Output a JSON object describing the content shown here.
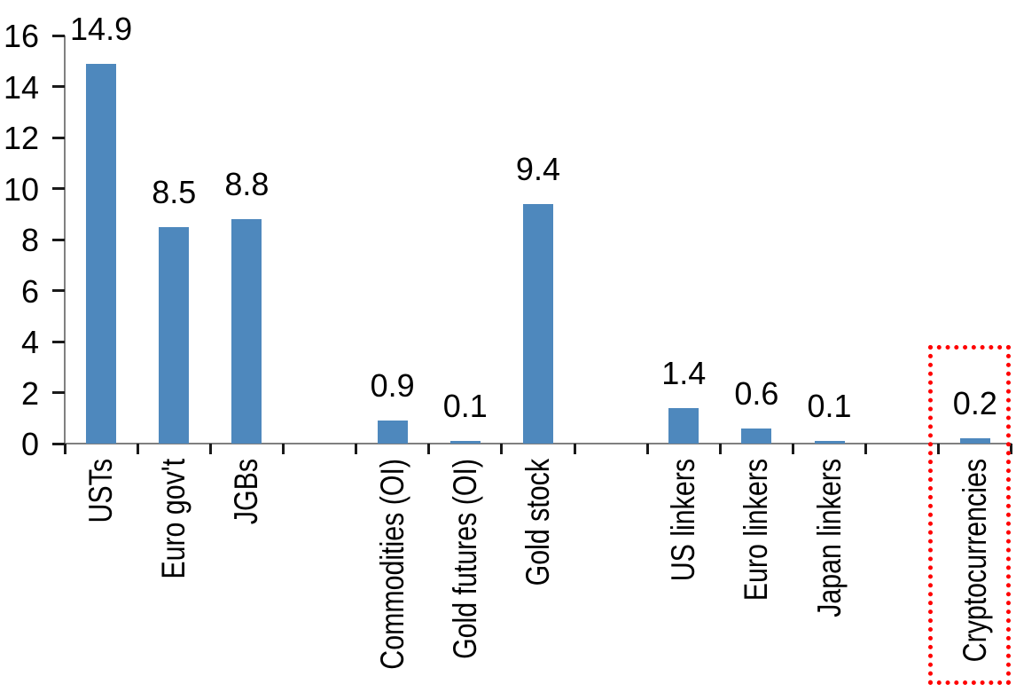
{
  "chart_data": {
    "type": "bar",
    "title": "",
    "categories": [
      "USTs",
      "Euro gov't",
      "JGBs",
      "Commodities (OI)",
      "Gold futures (OI)",
      "Gold stock",
      "US linkers",
      "Euro linkers",
      "Japan linkers",
      "Cryptocurrencies"
    ],
    "values": [
      14.9,
      8.5,
      8.8,
      0.9,
      0.1,
      9.4,
      1.4,
      0.6,
      0.1,
      0.2
    ],
    "data_labels": [
      "14.9",
      "8.5",
      "8.8",
      "0.9",
      "0.1",
      "9.4",
      "1.4",
      "0.6",
      "0.1",
      "0.2"
    ],
    "slot_indices": [
      0,
      1,
      2,
      4,
      5,
      6,
      8,
      9,
      10,
      12
    ],
    "total_slots": 13,
    "xlabel": "",
    "ylabel": "",
    "y_axis": {
      "min": 0,
      "max": 16,
      "step": 2,
      "tick_labels": [
        "0",
        "2",
        "4",
        "6",
        "8",
        "10",
        "12",
        "14",
        "16"
      ]
    },
    "grid": false,
    "legend": false,
    "label_rotation_deg": -90,
    "highlight": {
      "category": "Cryptocurrencies",
      "style": "dotted-box",
      "color": "#FF0000"
    },
    "colors": {
      "bar": "#4E88BD",
      "axis": "#808080",
      "tick": "#1A1A1A",
      "text": "#000000",
      "background": "#FFFFFF",
      "highlight_box": "#FF0000"
    }
  }
}
